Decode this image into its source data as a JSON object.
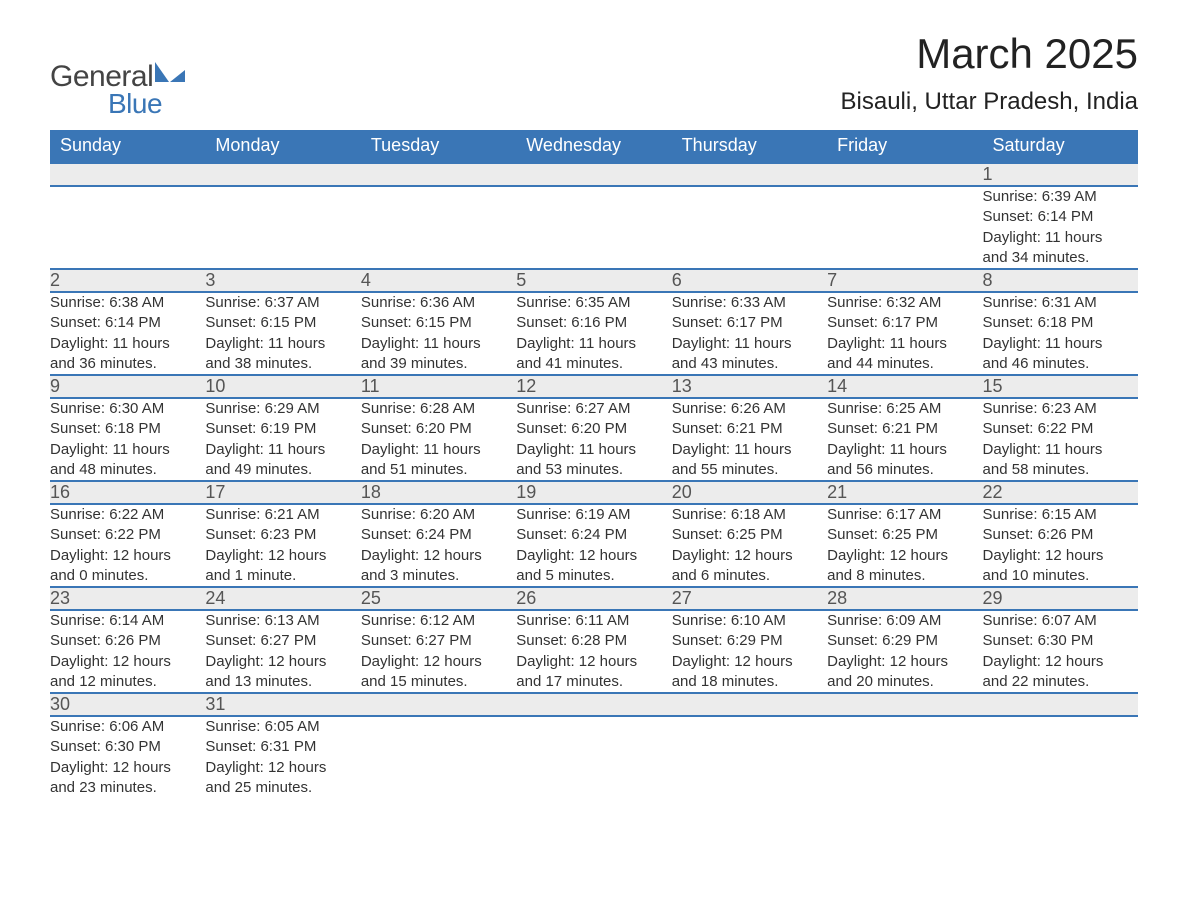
{
  "brand": {
    "text_general": "General",
    "text_blue": "Blue",
    "shape_color": "#3a76b6",
    "text_color_dark": "#444444"
  },
  "header": {
    "month_title": "March 2025",
    "location": "Bisauli, Uttar Pradesh, India"
  },
  "calendar": {
    "type": "table",
    "header_bg": "#3a76b6",
    "header_fg": "#ffffff",
    "daynum_bg": "#ececec",
    "row_border_color": "#3a76b6",
    "text_color": "#333333",
    "columns": [
      "Sunday",
      "Monday",
      "Tuesday",
      "Wednesday",
      "Thursday",
      "Friday",
      "Saturday"
    ],
    "weeks": [
      [
        null,
        null,
        null,
        null,
        null,
        null,
        {
          "n": "1",
          "sunrise": "Sunrise: 6:39 AM",
          "sunset": "Sunset: 6:14 PM",
          "day1": "Daylight: 11 hours",
          "day2": "and 34 minutes."
        }
      ],
      [
        {
          "n": "2",
          "sunrise": "Sunrise: 6:38 AM",
          "sunset": "Sunset: 6:14 PM",
          "day1": "Daylight: 11 hours",
          "day2": "and 36 minutes."
        },
        {
          "n": "3",
          "sunrise": "Sunrise: 6:37 AM",
          "sunset": "Sunset: 6:15 PM",
          "day1": "Daylight: 11 hours",
          "day2": "and 38 minutes."
        },
        {
          "n": "4",
          "sunrise": "Sunrise: 6:36 AM",
          "sunset": "Sunset: 6:15 PM",
          "day1": "Daylight: 11 hours",
          "day2": "and 39 minutes."
        },
        {
          "n": "5",
          "sunrise": "Sunrise: 6:35 AM",
          "sunset": "Sunset: 6:16 PM",
          "day1": "Daylight: 11 hours",
          "day2": "and 41 minutes."
        },
        {
          "n": "6",
          "sunrise": "Sunrise: 6:33 AM",
          "sunset": "Sunset: 6:17 PM",
          "day1": "Daylight: 11 hours",
          "day2": "and 43 minutes."
        },
        {
          "n": "7",
          "sunrise": "Sunrise: 6:32 AM",
          "sunset": "Sunset: 6:17 PM",
          "day1": "Daylight: 11 hours",
          "day2": "and 44 minutes."
        },
        {
          "n": "8",
          "sunrise": "Sunrise: 6:31 AM",
          "sunset": "Sunset: 6:18 PM",
          "day1": "Daylight: 11 hours",
          "day2": "and 46 minutes."
        }
      ],
      [
        {
          "n": "9",
          "sunrise": "Sunrise: 6:30 AM",
          "sunset": "Sunset: 6:18 PM",
          "day1": "Daylight: 11 hours",
          "day2": "and 48 minutes."
        },
        {
          "n": "10",
          "sunrise": "Sunrise: 6:29 AM",
          "sunset": "Sunset: 6:19 PM",
          "day1": "Daylight: 11 hours",
          "day2": "and 49 minutes."
        },
        {
          "n": "11",
          "sunrise": "Sunrise: 6:28 AM",
          "sunset": "Sunset: 6:20 PM",
          "day1": "Daylight: 11 hours",
          "day2": "and 51 minutes."
        },
        {
          "n": "12",
          "sunrise": "Sunrise: 6:27 AM",
          "sunset": "Sunset: 6:20 PM",
          "day1": "Daylight: 11 hours",
          "day2": "and 53 minutes."
        },
        {
          "n": "13",
          "sunrise": "Sunrise: 6:26 AM",
          "sunset": "Sunset: 6:21 PM",
          "day1": "Daylight: 11 hours",
          "day2": "and 55 minutes."
        },
        {
          "n": "14",
          "sunrise": "Sunrise: 6:25 AM",
          "sunset": "Sunset: 6:21 PM",
          "day1": "Daylight: 11 hours",
          "day2": "and 56 minutes."
        },
        {
          "n": "15",
          "sunrise": "Sunrise: 6:23 AM",
          "sunset": "Sunset: 6:22 PM",
          "day1": "Daylight: 11 hours",
          "day2": "and 58 minutes."
        }
      ],
      [
        {
          "n": "16",
          "sunrise": "Sunrise: 6:22 AM",
          "sunset": "Sunset: 6:22 PM",
          "day1": "Daylight: 12 hours",
          "day2": "and 0 minutes."
        },
        {
          "n": "17",
          "sunrise": "Sunrise: 6:21 AM",
          "sunset": "Sunset: 6:23 PM",
          "day1": "Daylight: 12 hours",
          "day2": "and 1 minute."
        },
        {
          "n": "18",
          "sunrise": "Sunrise: 6:20 AM",
          "sunset": "Sunset: 6:24 PM",
          "day1": "Daylight: 12 hours",
          "day2": "and 3 minutes."
        },
        {
          "n": "19",
          "sunrise": "Sunrise: 6:19 AM",
          "sunset": "Sunset: 6:24 PM",
          "day1": "Daylight: 12 hours",
          "day2": "and 5 minutes."
        },
        {
          "n": "20",
          "sunrise": "Sunrise: 6:18 AM",
          "sunset": "Sunset: 6:25 PM",
          "day1": "Daylight: 12 hours",
          "day2": "and 6 minutes."
        },
        {
          "n": "21",
          "sunrise": "Sunrise: 6:17 AM",
          "sunset": "Sunset: 6:25 PM",
          "day1": "Daylight: 12 hours",
          "day2": "and 8 minutes."
        },
        {
          "n": "22",
          "sunrise": "Sunrise: 6:15 AM",
          "sunset": "Sunset: 6:26 PM",
          "day1": "Daylight: 12 hours",
          "day2": "and 10 minutes."
        }
      ],
      [
        {
          "n": "23",
          "sunrise": "Sunrise: 6:14 AM",
          "sunset": "Sunset: 6:26 PM",
          "day1": "Daylight: 12 hours",
          "day2": "and 12 minutes."
        },
        {
          "n": "24",
          "sunrise": "Sunrise: 6:13 AM",
          "sunset": "Sunset: 6:27 PM",
          "day1": "Daylight: 12 hours",
          "day2": "and 13 minutes."
        },
        {
          "n": "25",
          "sunrise": "Sunrise: 6:12 AM",
          "sunset": "Sunset: 6:27 PM",
          "day1": "Daylight: 12 hours",
          "day2": "and 15 minutes."
        },
        {
          "n": "26",
          "sunrise": "Sunrise: 6:11 AM",
          "sunset": "Sunset: 6:28 PM",
          "day1": "Daylight: 12 hours",
          "day2": "and 17 minutes."
        },
        {
          "n": "27",
          "sunrise": "Sunrise: 6:10 AM",
          "sunset": "Sunset: 6:29 PM",
          "day1": "Daylight: 12 hours",
          "day2": "and 18 minutes."
        },
        {
          "n": "28",
          "sunrise": "Sunrise: 6:09 AM",
          "sunset": "Sunset: 6:29 PM",
          "day1": "Daylight: 12 hours",
          "day2": "and 20 minutes."
        },
        {
          "n": "29",
          "sunrise": "Sunrise: 6:07 AM",
          "sunset": "Sunset: 6:30 PM",
          "day1": "Daylight: 12 hours",
          "day2": "and 22 minutes."
        }
      ],
      [
        {
          "n": "30",
          "sunrise": "Sunrise: 6:06 AM",
          "sunset": "Sunset: 6:30 PM",
          "day1": "Daylight: 12 hours",
          "day2": "and 23 minutes."
        },
        {
          "n": "31",
          "sunrise": "Sunrise: 6:05 AM",
          "sunset": "Sunset: 6:31 PM",
          "day1": "Daylight: 12 hours",
          "day2": "and 25 minutes."
        },
        null,
        null,
        null,
        null,
        null
      ]
    ]
  }
}
